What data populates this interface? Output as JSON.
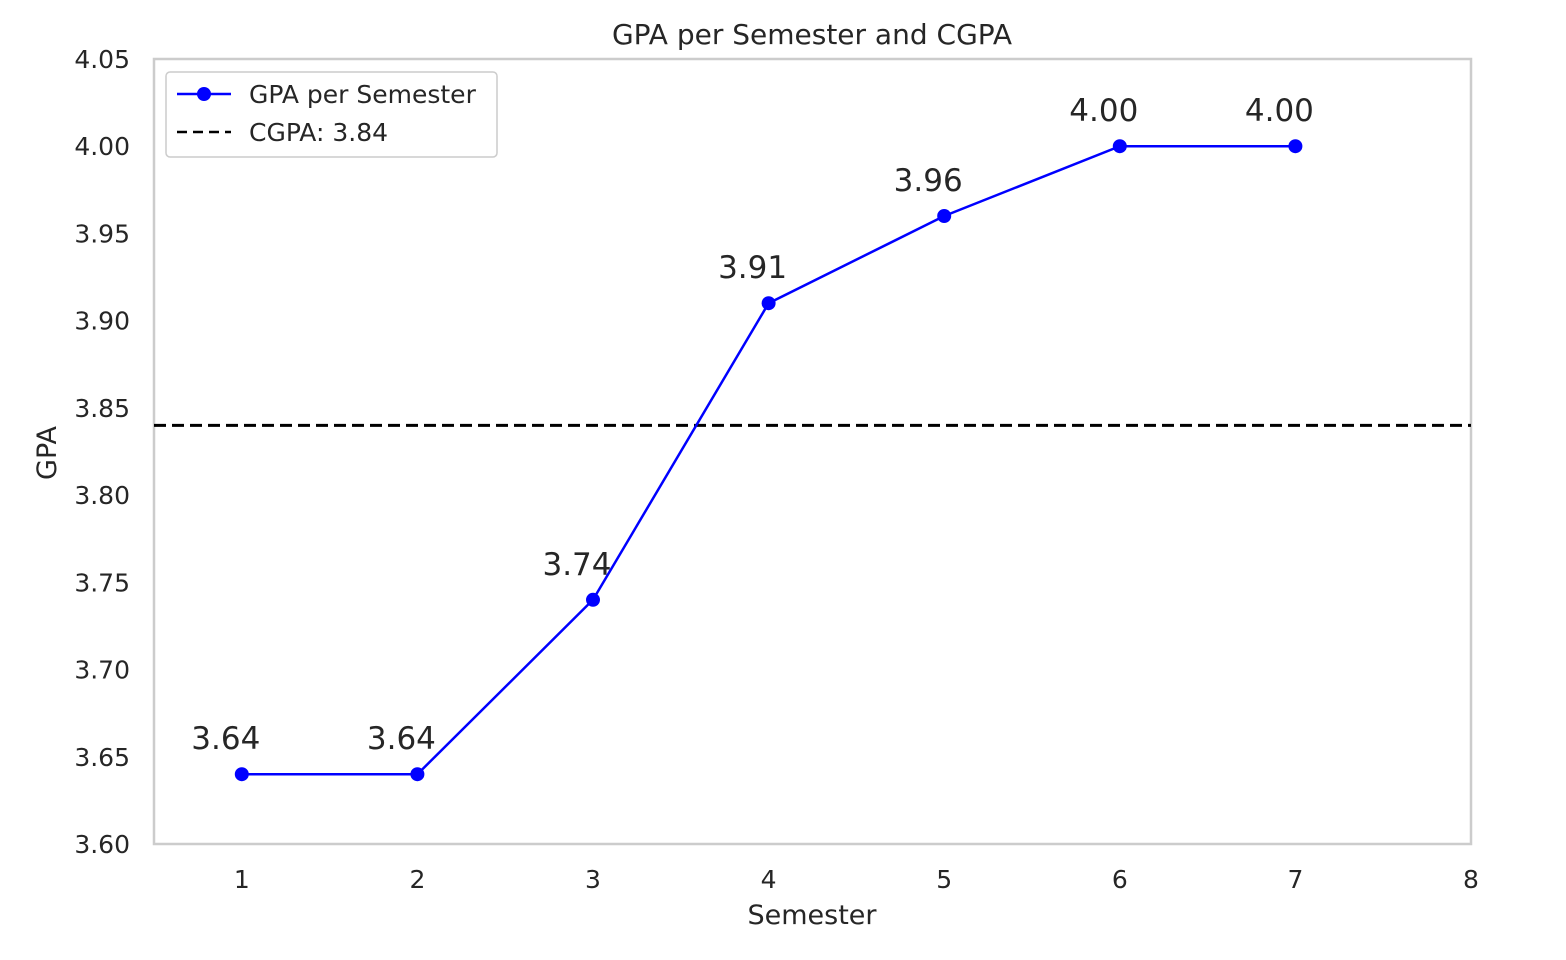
{
  "chart_data": {
    "type": "line",
    "title": "GPA per Semester and CGPA",
    "xlabel": "Semester",
    "ylabel": "GPA",
    "xlim": [
      0.5,
      8
    ],
    "ylim": [
      3.6,
      4.05
    ],
    "x_ticks": [
      1,
      2,
      3,
      4,
      5,
      6,
      7,
      8
    ],
    "y_ticks": [
      3.6,
      3.65,
      3.7,
      3.75,
      3.8,
      3.85,
      3.9,
      3.95,
      4.0,
      4.05
    ],
    "grid": false,
    "legend_position": "top-left",
    "series": [
      {
        "name": "GPA per Semester",
        "x": [
          1,
          2,
          3,
          4,
          5,
          6,
          7
        ],
        "values": [
          3.64,
          3.64,
          3.74,
          3.91,
          3.96,
          4.0,
          4.0
        ],
        "data_labels": [
          "3.64",
          "3.64",
          "3.74",
          "3.91",
          "3.96",
          "4.00",
          "4.00"
        ],
        "color": "#0000ff",
        "marker": "circle"
      }
    ],
    "reference_lines": [
      {
        "name": "CGPA: 3.84",
        "y": 3.84,
        "style": "dashed",
        "color": "#000000"
      }
    ]
  }
}
